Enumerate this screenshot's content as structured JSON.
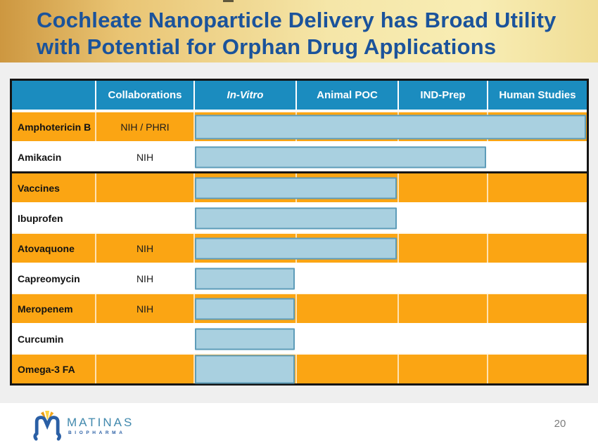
{
  "slide": {
    "title_line1": "Cochleate Nanoparticle Delivery has Broad Utility",
    "title_line2": "with Potential for Orphan Drug Applications",
    "page_number": "20"
  },
  "logo": {
    "brand": "MATINAS",
    "sub_brand": "BIOPHARMA"
  },
  "table": {
    "columns": [
      "",
      "Collaborations",
      "In-Vitro",
      "Animal POC",
      "IND-Prep",
      "Human Studies"
    ],
    "rows": [
      {
        "name": "Amphotericin B",
        "collaborations": "NIH / PHRI",
        "stage_span": 4,
        "progress_through": "Human Studies"
      },
      {
        "name": "Amikacin",
        "collaborations": "NIH",
        "stage_span": 3,
        "progress_through": "IND-Prep"
      },
      {
        "name": "Vaccines",
        "collaborations": "",
        "stage_span": 2,
        "progress_through": "Animal POC"
      },
      {
        "name": "Ibuprofen",
        "collaborations": "",
        "stage_span": 2,
        "progress_through": "Animal POC"
      },
      {
        "name": "Atovaquone",
        "collaborations": "NIH",
        "stage_span": 2,
        "progress_through": "Animal POC"
      },
      {
        "name": "Capreomycin",
        "collaborations": "NIH",
        "stage_span": 1,
        "progress_through": "In-Vitro"
      },
      {
        "name": "Meropenem",
        "collaborations": "NIH",
        "stage_span": 1,
        "progress_through": "In-Vitro"
      },
      {
        "name": "Curcumin",
        "collaborations": "",
        "stage_span": 1,
        "progress_through": "In-Vitro"
      },
      {
        "name": "Omega-3 FA",
        "collaborations": "",
        "stage_span": 1,
        "progress_through": "In-Vitro"
      }
    ]
  },
  "colors": {
    "header_blue": "#1b8cbf",
    "row_orange": "#fba513",
    "row_white": "#ffffff",
    "bar_fill": "#a9d0e0",
    "bar_border": "#5d9cb9",
    "title_blue": "#1b539b",
    "band_gold_left": "#cd9740",
    "band_gold_right": "#f8edb4",
    "table_border": "#141414",
    "page_bg": "#efefef",
    "page_number_gray": "#7c7c7c",
    "logo_blue": "#2a5fa5",
    "logo_teal": "#4189ad",
    "logo_gold": "#f2a71c"
  }
}
